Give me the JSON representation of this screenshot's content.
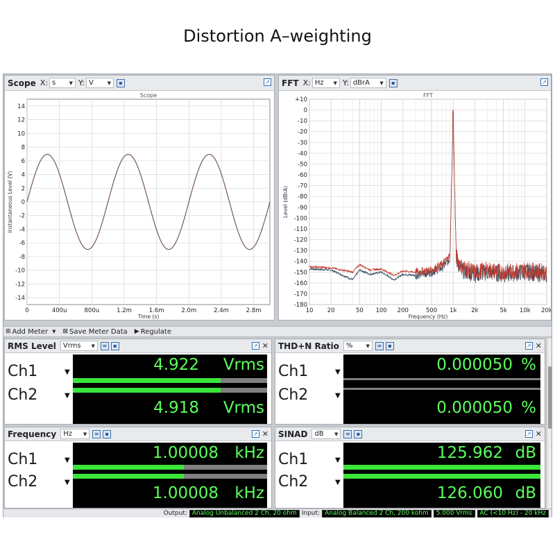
{
  "page_title": "Distortion A–weighting",
  "scope": {
    "title": "Scope",
    "x_label": "X:",
    "x_unit": "s",
    "y_label": "Y:",
    "y_unit": "V",
    "graph_title": "Scope"
  },
  "fft": {
    "title": "FFT",
    "x_label": "X:",
    "x_unit": "Hz",
    "y_label": "Y:",
    "y_unit": "dBrA",
    "graph_title": "FFT"
  },
  "chart_data": [
    {
      "type": "line",
      "title": "Scope",
      "xlabel": "Time (s)",
      "ylabel": "Instantaneous Level (V)",
      "xlim": [
        0,
        0.003
      ],
      "ylim": [
        -15,
        15
      ],
      "x_ticks": [
        "0",
        "400u",
        "800u",
        "1.2m",
        "1.6m",
        "2.0m",
        "2.4m",
        "2.8m"
      ],
      "y_ticks": [
        "14",
        "12",
        "10",
        "8",
        "6",
        "4",
        "2",
        "0",
        "-2",
        "-4",
        "-6",
        "-8",
        "-10",
        "-12",
        "-14"
      ],
      "series": [
        {
          "amplitude_v": 6.95,
          "frequency_hz": 1000.08,
          "x": [
            0,
            0.00025,
            0.0005,
            0.00075,
            0.001,
            0.00125,
            0.0015,
            0.00175,
            0.002,
            0.00225,
            0.0025,
            0.00275,
            0.003
          ],
          "y": [
            0,
            6.95,
            0,
            -6.95,
            0,
            6.95,
            0,
            -6.95,
            0,
            6.95,
            0,
            -6.95,
            0
          ]
        }
      ],
      "grid": true
    },
    {
      "type": "line",
      "title": "FFT",
      "xlabel": "Frequency (Hz)",
      "ylabel": "Level (dBrA)",
      "x_scale": "log",
      "xlim": [
        10,
        20000
      ],
      "ylim": [
        -180,
        10
      ],
      "x_ticks": [
        "10",
        "20",
        "50",
        "100",
        "200",
        "500",
        "1k",
        "2k",
        "5k",
        "10k",
        "20k"
      ],
      "y_ticks": [
        "+10",
        "0",
        "-10",
        "-20",
        "-30",
        "-40",
        "-50",
        "-60",
        "-70",
        "-80",
        "-90",
        "-100",
        "-110",
        "-120",
        "-130",
        "-140",
        "-150",
        "-160",
        "-170",
        "-180"
      ],
      "series": [
        {
          "color": "#c0392b",
          "x": [
            10,
            20,
            40,
            50,
            70,
            100,
            150,
            200,
            300,
            500,
            700,
            900,
            1000,
            1100,
            1300,
            2000,
            3000,
            5000,
            10000,
            20000
          ],
          "y": [
            -145,
            -146,
            -150,
            -143,
            -148,
            -147,
            -153,
            -149,
            -150,
            -148,
            -143,
            -135,
            0,
            -135,
            -145,
            -150,
            -148,
            -150,
            -148,
            -150
          ]
        },
        {
          "color": "#34495e",
          "x": [
            10,
            20,
            40,
            50,
            70,
            100,
            150,
            200,
            300,
            500,
            700,
            900,
            1000,
            1100,
            1300,
            2000,
            3000,
            5000,
            10000,
            20000
          ],
          "y": [
            -147,
            -148,
            -157,
            -148,
            -152,
            -150,
            -157,
            -152,
            -153,
            -150,
            -146,
            -138,
            -2,
            -138,
            -148,
            -152,
            -150,
            -152,
            -150,
            -152
          ]
        }
      ],
      "grid": true
    }
  ],
  "toolbar": {
    "add_meter": "Add Meter",
    "save_meter_data": "Save Meter Data",
    "regulate": "Regulate"
  },
  "meters": {
    "rms": {
      "title": "RMS Level",
      "unit_select": "Vrms",
      "ch1_label": "Ch1",
      "ch1_value": "4.922",
      "ch1_unit": "Vrms",
      "ch1_bar": 0.76,
      "ch2_label": "Ch2",
      "ch2_value": "4.918",
      "ch2_unit": "Vrms",
      "ch2_bar": 0.76
    },
    "thdn": {
      "title": "THD+N Ratio",
      "unit_select": "%",
      "ch1_label": "Ch1",
      "ch1_value": "0.000050",
      "ch1_unit": "%",
      "ch2_label": "Ch2",
      "ch2_value": "0.000050",
      "ch2_unit": "%"
    },
    "freq": {
      "title": "Frequency",
      "unit_select": "Hz",
      "ch1_label": "Ch1",
      "ch1_value": "1.00008",
      "ch1_unit": "kHz",
      "ch1_bar": 0.57,
      "ch2_label": "Ch2",
      "ch2_value": "1.00008",
      "ch2_unit": "kHz",
      "ch2_bar": 0.57
    },
    "sinad": {
      "title": "SINAD",
      "unit_select": "dB",
      "ch1_label": "Ch1",
      "ch1_value": "125.962",
      "ch1_unit": "dB",
      "ch1_bar": 1.0,
      "ch2_label": "Ch2",
      "ch2_value": "126.060",
      "ch2_unit": "dB",
      "ch2_bar": 1.0
    }
  },
  "status": {
    "output_label": "Output:",
    "output_value": "Analog Unbalanced 2 Ch, 20 ohm",
    "input_label": "Input:",
    "input_value": "Analog Balanced 2 Ch, 200 kohm",
    "level_value": "5.000 Vrms",
    "coupling_value": "AC (<10 Hz) - 20 kHz"
  }
}
